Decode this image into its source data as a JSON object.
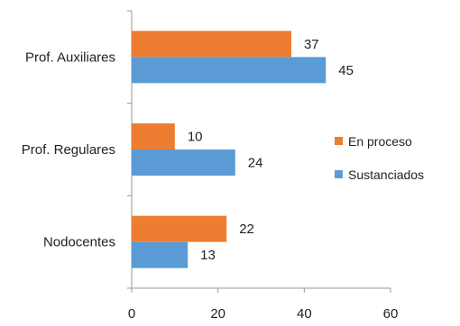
{
  "chart_data": {
    "type": "bar",
    "orientation": "horizontal",
    "categories": [
      "Prof. Auxiliares",
      "Prof. Regulares",
      "Nodocentes"
    ],
    "series": [
      {
        "name": "En proceso",
        "values": [
          37,
          10,
          22
        ],
        "color": "#ED7D31"
      },
      {
        "name": "Sustanciados",
        "values": [
          45,
          24,
          13
        ],
        "color": "#5B9BD5"
      }
    ],
    "xlim": [
      0,
      60
    ],
    "xticks": [
      0,
      20,
      40,
      60
    ],
    "title": "",
    "xlabel": "",
    "ylabel": "",
    "grid": false,
    "legend_position": "right",
    "data_labels": true
  }
}
